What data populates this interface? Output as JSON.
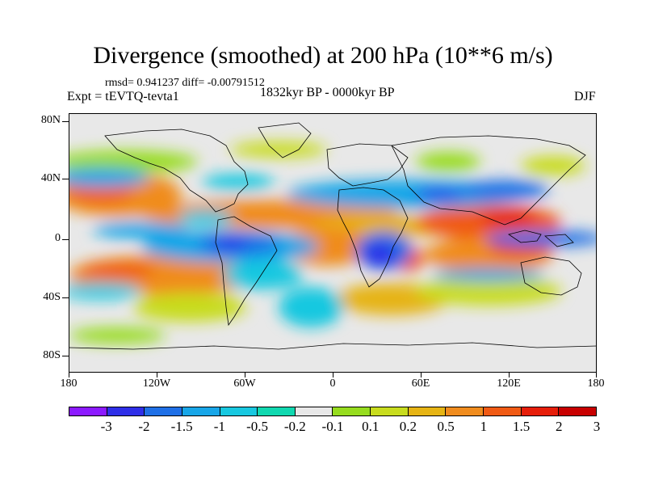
{
  "header": {
    "title": "Divergence (smoothed) at 200 hPa (10**6 m/s)",
    "stats": "rmsd= 0.941237 diff= -0.00791512",
    "experiment": "Expt = tEVTQ-tevta1",
    "period": "1832kyr BP - 0000kyr BP",
    "season": "DJF"
  },
  "map": {
    "projection": "cylindrical equidistant",
    "lon_range": [
      -180,
      180
    ],
    "lat_range": [
      -90,
      90
    ],
    "lat_labels": [
      "80N",
      "40N",
      "0",
      "40S",
      "80S"
    ],
    "lon_labels": [
      "180",
      "120W",
      "60W",
      "0",
      "60E",
      "120E",
      "180"
    ],
    "coastlines": true,
    "missing_color": "#e8e8e8"
  },
  "colorbar": {
    "labels": [
      "-3",
      "-2",
      "-1.5",
      "-1",
      "-0.5",
      "-0.2",
      "-0.1",
      "0.1",
      "0.2",
      "0.5",
      "1",
      "1.5",
      "2",
      "3"
    ],
    "colors": [
      "#8c1aff",
      "#2f2fe8",
      "#1f6fe6",
      "#18a6e8",
      "#18c8e0",
      "#10d8b0",
      "#e8e8e8",
      "#96dc1e",
      "#c8dc1e",
      "#e6b414",
      "#f08c1e",
      "#f05a14",
      "#e61e0a",
      "#c80000"
    ]
  }
}
